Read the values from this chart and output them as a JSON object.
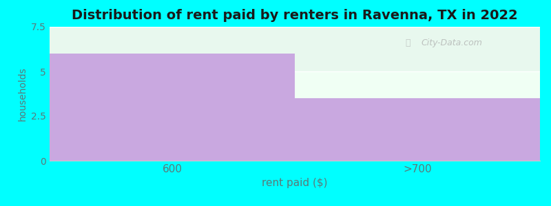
{
  "categories": [
    "600",
    ">700"
  ],
  "values": [
    6,
    3.5
  ],
  "bar_color": "#c9a8e0",
  "background_color": "#00ffff",
  "plot_bg_color": "#f0fff4",
  "stripe_color": "#e8f8ee",
  "title": "Distribution of rent paid by renters in Ravenna, TX in 2022",
  "title_fontsize": 14,
  "title_fontweight": "bold",
  "xlabel": "rent paid ($)",
  "ylabel": "households",
  "label_color": "#5a7a7a",
  "tick_color": "#5a7a7a",
  "ylim": [
    0,
    7.5
  ],
  "yticks": [
    0,
    2.5,
    5,
    7.5
  ],
  "watermark": "City-Data.com"
}
